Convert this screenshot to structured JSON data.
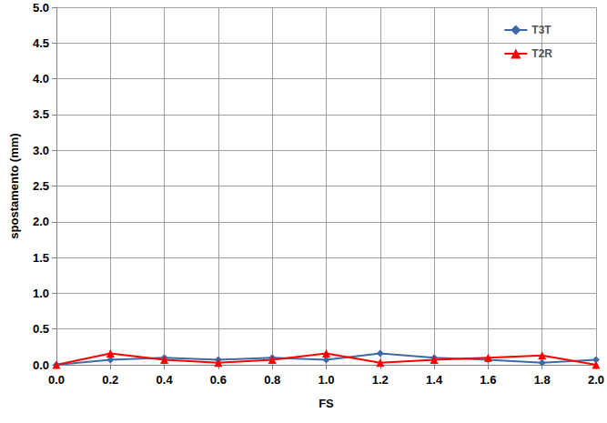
{
  "chart_data": {
    "type": "line",
    "x_label": "FS",
    "y_label": "spostamento (mm)",
    "xlim": [
      0,
      2
    ],
    "xticks": [
      {
        "value": 0,
        "label": "0.0"
      },
      0.2,
      0.4,
      0.6,
      0.8,
      {
        "value": 1,
        "label": "1.0"
      },
      1.2,
      1.4,
      1.6,
      1.8,
      {
        "value": 2,
        "label": "2.0"
      }
    ],
    "ylim": [
      0,
      5
    ],
    "yticks": [
      {
        "value": 0,
        "label": "0.0"
      },
      0.5,
      {
        "value": 1,
        "label": "1.0"
      },
      1.5,
      {
        "value": 2,
        "label": "2.0"
      },
      2.5,
      {
        "value": 3,
        "label": "3.0"
      },
      3.5,
      {
        "value": 4,
        "label": "4.0"
      },
      4.5,
      {
        "value": 5,
        "label": "5.0"
      }
    ],
    "grid": true,
    "legend": "upper right",
    "x": [
      0,
      0.2,
      0.4,
      0.6,
      0.8,
      1.0,
      1.2,
      1.4,
      1.6,
      1.8,
      2.0
    ],
    "series": [
      {
        "name": "T3T",
        "color": "#3b6aa6",
        "marker": "diamond",
        "values": [
          0,
          0.07,
          0.1,
          0.07,
          0.1,
          0.07,
          0.16,
          0.1,
          0.07,
          0.03,
          0.07
        ]
      },
      {
        "name": "T2R",
        "color": "#ff0000",
        "marker": "triangle",
        "values": [
          0,
          0.16,
          0.07,
          0.03,
          0.07,
          0.16,
          0.03,
          0.07,
          0.1,
          0.13,
          0.0
        ]
      }
    ]
  }
}
